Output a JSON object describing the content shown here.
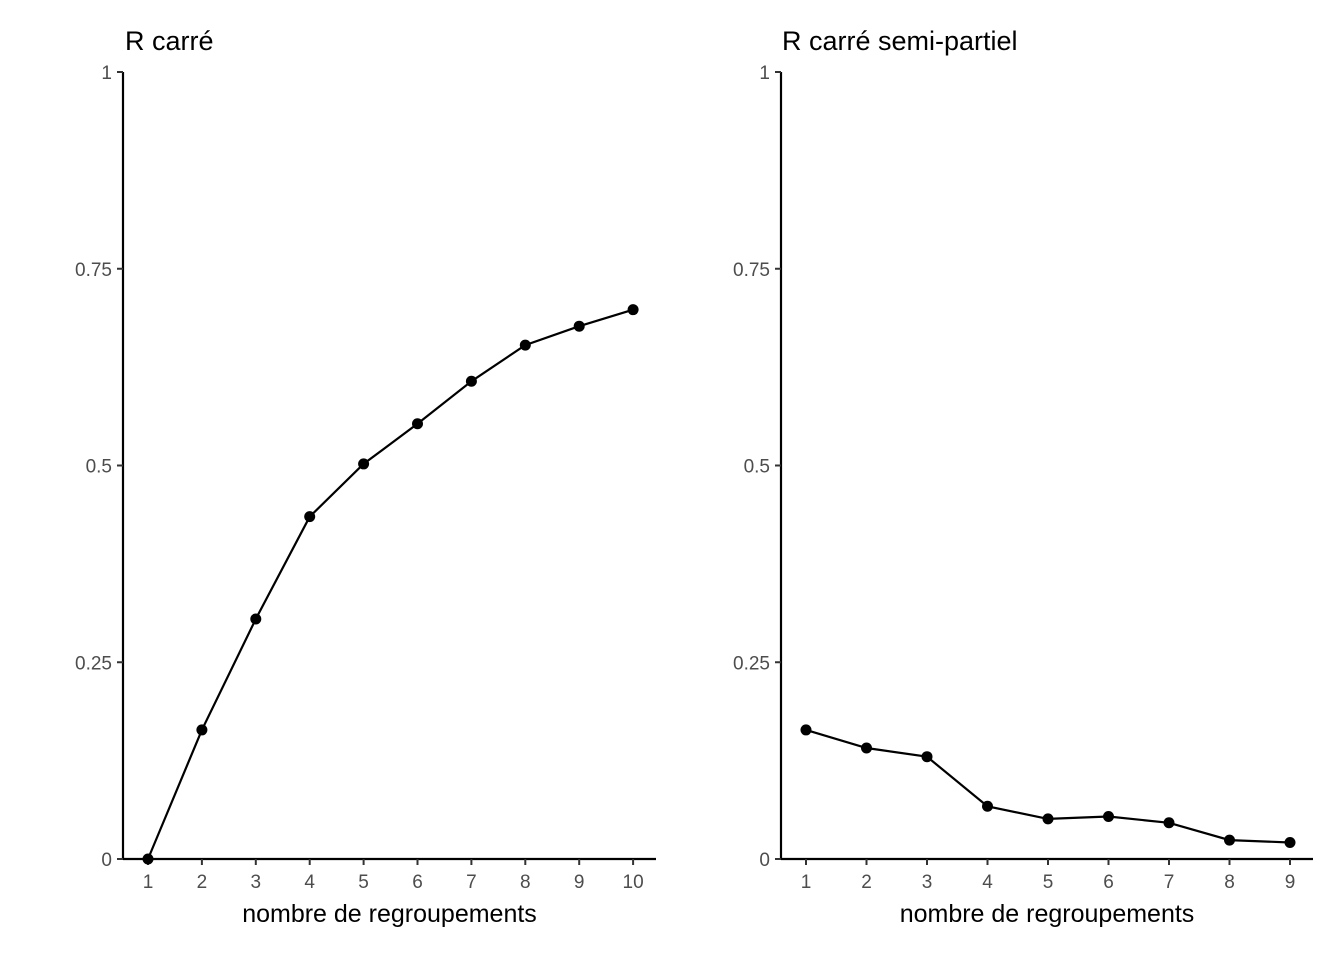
{
  "chart_data": [
    {
      "type": "line",
      "title": "R carré",
      "xlabel": "nombre de regroupements",
      "ylabel": "",
      "x": [
        1,
        2,
        3,
        4,
        5,
        6,
        7,
        8,
        9,
        10
      ],
      "xticks": [
        "1",
        "2",
        "3",
        "4",
        "5",
        "6",
        "7",
        "8",
        "9",
        "10"
      ],
      "values": [
        0.0,
        0.164,
        0.305,
        0.435,
        0.502,
        0.553,
        0.607,
        0.653,
        0.677,
        0.698
      ],
      "ylim": [
        0,
        1
      ],
      "yticks": [
        0,
        0.25,
        0.5,
        0.75,
        1
      ],
      "ytick_labels": [
        "0",
        "0.25",
        "0.5",
        "0.75",
        "1"
      ],
      "grid": false,
      "legend": "none"
    },
    {
      "type": "line",
      "title": "R carré semi-partiel",
      "xlabel": "nombre de regroupements",
      "ylabel": "",
      "x": [
        1,
        2,
        3,
        4,
        5,
        6,
        7,
        8,
        9
      ],
      "xticks": [
        "1",
        "2",
        "3",
        "4",
        "5",
        "6",
        "7",
        "8",
        "9"
      ],
      "values": [
        0.164,
        0.141,
        0.13,
        0.067,
        0.051,
        0.054,
        0.046,
        0.024,
        0.021
      ],
      "ylim": [
        0,
        1
      ],
      "yticks": [
        0,
        0.25,
        0.5,
        0.75,
        1
      ],
      "ytick_labels": [
        "0",
        "0.25",
        "0.5",
        "0.75",
        "1"
      ],
      "grid": false,
      "legend": "none"
    }
  ]
}
